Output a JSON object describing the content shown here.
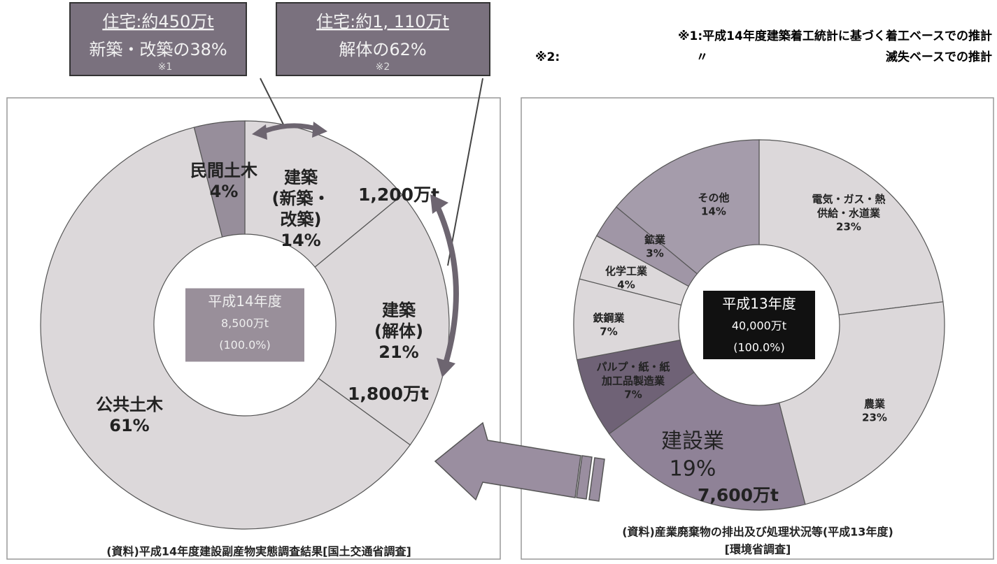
{
  "chart_data": [
    {
      "type": "pie",
      "categories": [
        "建築\n(新築・\n改築)",
        "建築\n(解体)",
        "公共土木",
        "民間土木"
      ],
      "values": [
        14,
        21,
        61,
        4
      ],
      "value_labels": [
        "14%",
        "21%",
        "61%",
        "4%"
      ],
      "colors": [
        "#dcd8da",
        "#dcd8da",
        "#dcd8da",
        "#978e9b"
      ],
      "center_label": [
        "平成14年度",
        "8,500万t",
        "(100.0%)"
      ],
      "annotations": [
        "1,200万t",
        "1,800万t"
      ],
      "source": [
        "(資料)平成14年度建設副産物実態調査結果[国土交通省調査]"
      ]
    },
    {
      "type": "pie",
      "categories": [
        "電気・ガス・熱\n供給・水道業",
        "農業",
        "建設業",
        "パルプ・紙・紙\n加工品製造業",
        "鉄鋼業",
        "化学工業",
        "鉱業",
        "その他"
      ],
      "values": [
        23,
        23,
        19,
        7,
        7,
        4,
        3,
        14
      ],
      "value_labels": [
        "23%",
        "23%",
        "19%",
        "7%",
        "7%",
        "4%",
        "3%",
        "14%"
      ],
      "colors": [
        "#dcd8da",
        "#dcd8da",
        "#8f8297",
        "#6f6276",
        "#dcd8da",
        "#dcd8da",
        "#a096a6",
        "#a59cab"
      ],
      "center_label": [
        "平成13年度",
        "40,000万t",
        "(100.0%)"
      ],
      "annotations": [
        "7,600万t"
      ],
      "source": [
        "(資料)産業廃棄物の排出及び処理状況等(平成13年度)",
        "[環境省調査]"
      ]
    }
  ],
  "callouts": [
    {
      "title": "住宅:約450万t",
      "text": "新築・改築の38%",
      "note": "※1"
    },
    {
      "title": "住宅:約1, 110万t",
      "text": "解体の62%",
      "note": "※2"
    }
  ],
  "notes": [
    "※1:平成14年度建築着工統計に基づく着工ベースでの推計",
    "※2:",
    "〃",
    "滅失ベースでの推計"
  ]
}
